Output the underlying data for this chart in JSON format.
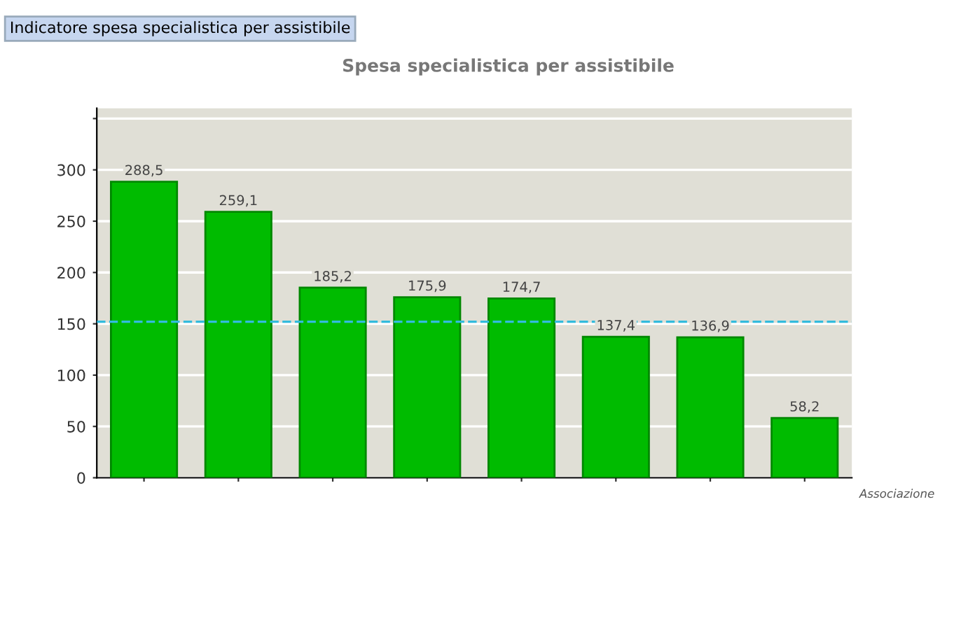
{
  "chart_data": {
    "type": "bar",
    "title": "Indicatore spesa specialistica per assistibile",
    "subtitle": "Spesa specialistica per assistibile",
    "xlabel": "Associazione",
    "categories": [
      null,
      null,
      null,
      null,
      null,
      null,
      null,
      null
    ],
    "values": [
      288.5,
      259.1,
      185.2,
      175.9,
      174.7,
      137.4,
      136.9,
      58.2
    ],
    "value_labels": [
      "288,5",
      "259,1",
      "185,2",
      "175,9",
      "174,7",
      "137,4",
      "136,9",
      "58,2"
    ],
    "color": "#00bb00",
    "ylim": [
      0,
      360
    ],
    "yticks": [
      0,
      50,
      100,
      150,
      200,
      250,
      300,
      {
        "value": 350,
        "label": null
      }
    ],
    "grid": "y",
    "ref_lines": [
      {
        "axis": "y",
        "value": 152,
        "color": "#33bbdd",
        "line_style": "dashed"
      }
    ]
  }
}
